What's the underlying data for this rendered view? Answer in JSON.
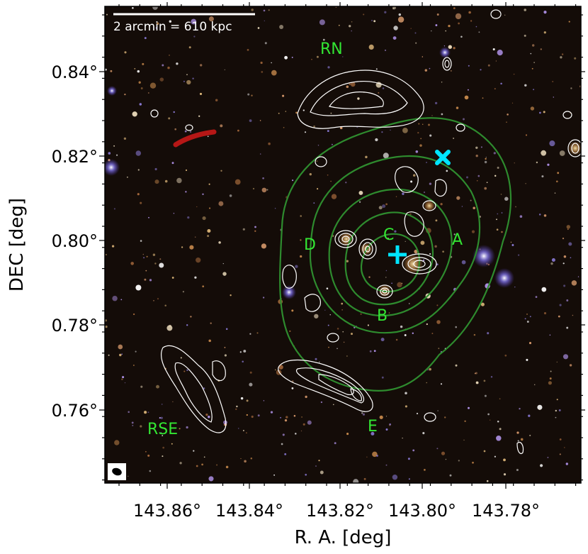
{
  "figure": {
    "scale_bar_label": "2 arcmin = 610 kpc",
    "x_axis_title": "R. A. [deg]",
    "y_axis_title": "DEC [deg]",
    "x_ticks": [
      "143.86°",
      "143.84°",
      "143.82°",
      "143.80°",
      "143.78°"
    ],
    "y_ticks": [
      "0.84°",
      "0.82°",
      "0.80°",
      "0.78°",
      "0.76°"
    ],
    "region_labels": {
      "rn": "RN",
      "rse": "RSE",
      "a": "A",
      "b": "B",
      "c": "C",
      "d": "D",
      "e": "E"
    },
    "markers": {
      "cross_color": "#00e5ff",
      "x_color": "#00e5ff"
    },
    "colors": {
      "sky": "#140c08",
      "xray_contours": "#2e8b2e",
      "radio_contours": "#ffffff",
      "labels": "#33e633"
    }
  }
}
